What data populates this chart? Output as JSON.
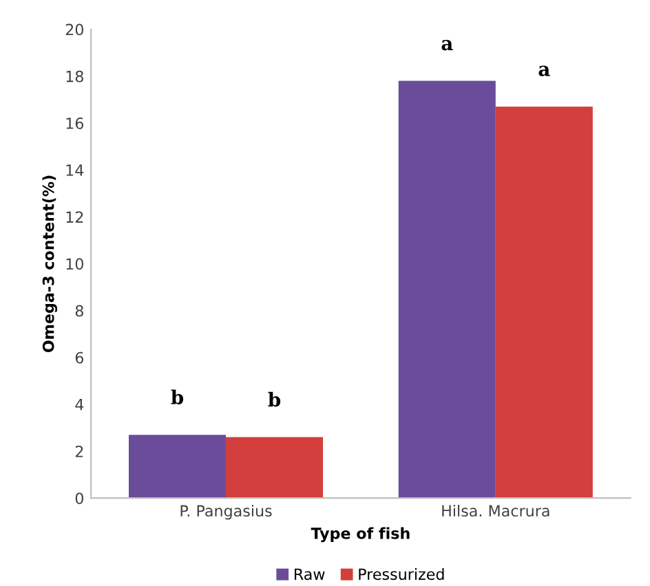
{
  "chart_data": {
    "type": "bar",
    "xlabel": "Type of fish",
    "ylabel": "Omega-3 content(%)",
    "categories": [
      "P. Pangasius",
      "Hilsa. Macrura"
    ],
    "series": [
      {
        "name": "Raw",
        "color": "#6b4c9a",
        "values": [
          2.7,
          17.8
        ]
      },
      {
        "name": "Pressurized",
        "color": "#d23f3c",
        "values": [
          2.6,
          16.7
        ]
      }
    ],
    "ylim": [
      0,
      20
    ],
    "yticks": [
      0,
      2,
      4,
      6,
      8,
      10,
      12,
      14,
      16,
      18,
      20
    ],
    "grid": false,
    "legend": "bottom",
    "annotations": [
      "b",
      "b",
      "a",
      "a"
    ]
  }
}
